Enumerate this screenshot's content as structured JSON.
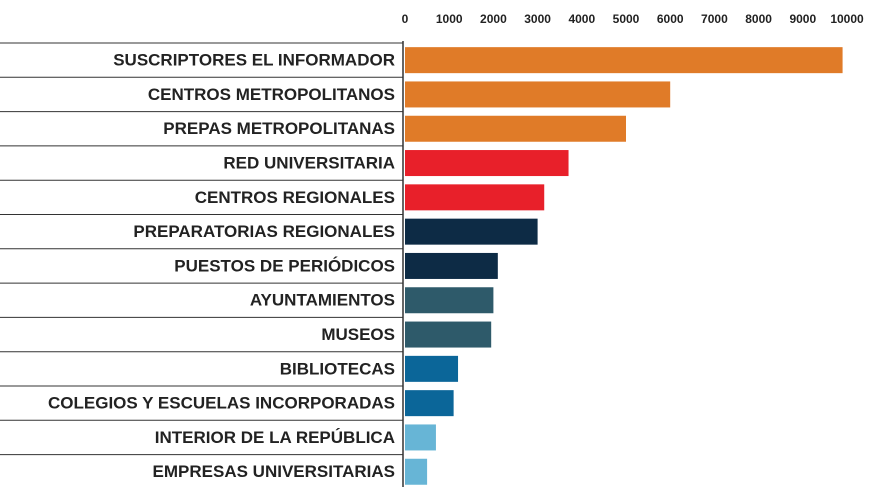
{
  "chart_data": {
    "type": "barh",
    "categories": [
      "SUSCRIPTORES EL INFORMADOR",
      "CENTROS METROPOLITANOS",
      "PREPAS METROPOLITANAS",
      "RED UNIVERSITARIA",
      "CENTROS REGIONALES",
      "PREPARATORIAS REGIONALES",
      "PUESTOS DE PERIÓDICOS",
      "AYUNTAMIENTOS",
      "MUSEOS",
      "BIBLIOTECAS",
      "COLEGIOS Y ESCUELAS INCORPORADAS",
      "INTERIOR DE LA REPÚBLICA",
      "EMPRESAS UNIVERSITARIAS"
    ],
    "values": [
      9900,
      6000,
      5000,
      3700,
      3150,
      3000,
      2100,
      2000,
      1950,
      1200,
      1100,
      700,
      500
    ],
    "colors": [
      "#e07b28",
      "#e07b28",
      "#e07b28",
      "#e8202a",
      "#e8202a",
      "#0d2b45",
      "#0d2b45",
      "#2e5a6a",
      "#2e5a6a",
      "#0b6699",
      "#0b6699",
      "#67b5d6",
      "#67b5d6"
    ],
    "xlim": [
      0,
      10000
    ],
    "xticks": [
      0,
      1000,
      2000,
      3000,
      4000,
      5000,
      6000,
      7000,
      8000,
      9000,
      10000
    ]
  }
}
